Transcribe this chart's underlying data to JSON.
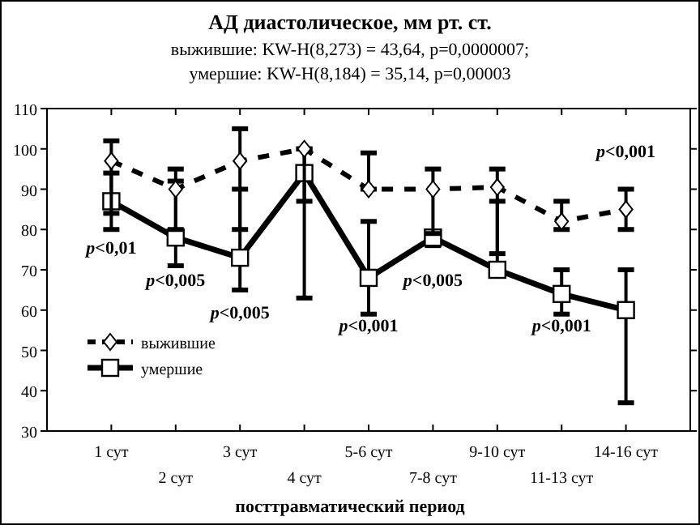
{
  "chart_data": {
    "type": "line",
    "title": "АД диастолическое, мм рт. ст.",
    "subtitle": "выжившие:  KW-H(8,273) = 43,64, p=0,0000007;\nумершие:  KW-H(8,184) = 35,14, p=0,00003",
    "xlabel": "посттравматический период",
    "categories": [
      "1 сут",
      "2 сут",
      "3 сут",
      "4 сут",
      "5-6 сут",
      "7-8 сут",
      "9-10 сут",
      "11-13 сут",
      "14-16 сут"
    ],
    "series": [
      {
        "name": "выжившие",
        "color": "#000000",
        "marker": "diamond",
        "line_style": "dashed",
        "values": [
          97,
          90,
          97,
          100,
          90,
          90,
          90.5,
          82,
          85
        ],
        "errors": [
          [
            84,
            102
          ],
          [
            80,
            95
          ],
          [
            80,
            105
          ],
          [
            87,
            100
          ],
          [
            90,
            99
          ],
          [
            79,
            95
          ],
          [
            74,
            95
          ],
          [
            80,
            87
          ],
          [
            80,
            90
          ]
        ]
      },
      {
        "name": "умершие",
        "color": "#000000",
        "marker": "square",
        "line_style": "solid",
        "values": [
          87,
          78,
          73,
          94,
          68,
          78,
          70,
          64,
          60
        ],
        "errors": [
          [
            80,
            94
          ],
          [
            71,
            92
          ],
          [
            65,
            90
          ],
          [
            63,
            100
          ],
          [
            59,
            82
          ],
          [
            76,
            79
          ],
          [
            70,
            87
          ],
          [
            59,
            70
          ],
          [
            37,
            70
          ]
        ]
      }
    ],
    "ylim": [
      30,
      110
    ],
    "yticks": [
      30,
      40,
      50,
      60,
      70,
      80,
      90,
      100,
      110
    ],
    "legend": "bottom left",
    "annotations": [
      "p<0,01",
      "p<0,005",
      "p<0,005",
      "p<0,001",
      "p<0,005",
      "p<0,001",
      "p<0,001"
    ]
  }
}
